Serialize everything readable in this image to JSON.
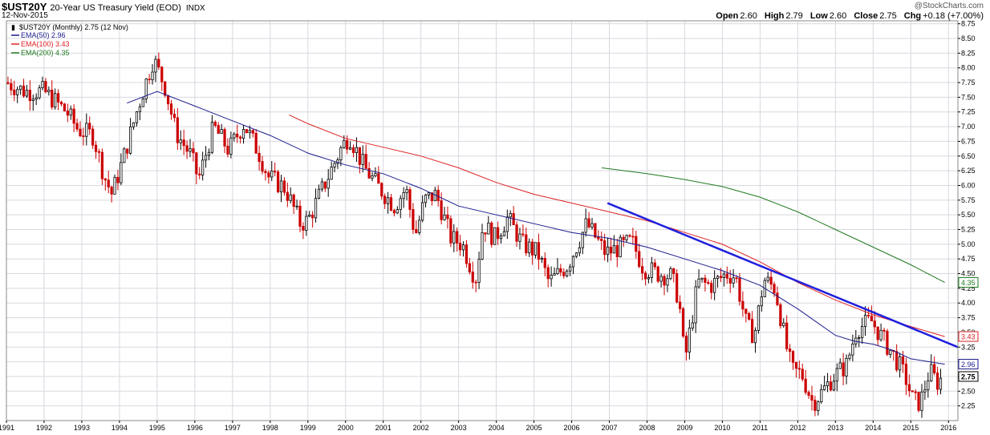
{
  "header": {
    "symbol": "$UST20Y",
    "name": "20-Year US Treasury Yield (EOD)",
    "exchange": "INDX",
    "date": "12-Nov-2015",
    "watermark": "@StockCharts.com",
    "open_label": "Open",
    "open": "2.60",
    "high_label": "High",
    "high": "2.79",
    "low_label": "Low",
    "low": "2.60",
    "close_label": "Close",
    "close": "2.75",
    "chg_label": "Chg",
    "chg": "+0.18 (+7.00%)"
  },
  "legend": {
    "main": "$UST20Y (Monthly) 2.75 (12 Nov)",
    "ema50": "EMA(50) 2.96",
    "ema100": "EMA(100) 3.43",
    "ema200": "EMA(200) 4.35"
  },
  "colors": {
    "up": "#000000",
    "down": "#cc0000",
    "ema50": "#1a1a8c",
    "ema100": "#dd2222",
    "ema200": "#1f7a1f",
    "trendline": "#1f1fdd",
    "grid": "#d8d8e0",
    "plot_border": "#888888"
  },
  "chart_data": {
    "type": "candlestick",
    "title": "$UST20Y 20-Year US Treasury Yield (EOD)",
    "frequency": "Monthly",
    "x_range": [
      1991.0,
      2016.25
    ],
    "y_range": [
      2.0,
      8.8
    ],
    "y_ticks": [
      "2.25",
      "2.50",
      "2.75",
      "3.00",
      "3.25",
      "3.50",
      "3.75",
      "4.00",
      "4.25",
      "4.50",
      "4.75",
      "5.00",
      "5.25",
      "5.50",
      "5.75",
      "6.00",
      "6.25",
      "6.50",
      "6.75",
      "7.00",
      "7.25",
      "7.50",
      "7.75",
      "8.00",
      "8.25",
      "8.50",
      "8.75"
    ],
    "x_ticks": [
      "1991",
      "1992",
      "1993",
      "1994",
      "1995",
      "1996",
      "1997",
      "1998",
      "1999",
      "2000",
      "2001",
      "2002",
      "2003",
      "2004",
      "2005",
      "2006",
      "2007",
      "2008",
      "2009",
      "2010",
      "2011",
      "2012",
      "2013",
      "2014",
      "2015",
      "2016"
    ],
    "price_path": [
      [
        1991.0,
        7.75
      ],
      [
        1991.5,
        7.6
      ],
      [
        1992.0,
        7.6
      ],
      [
        1992.6,
        7.25
      ],
      [
        1992.9,
        6.95
      ],
      [
        1993.3,
        6.85
      ],
      [
        1993.6,
        6.15
      ],
      [
        1993.8,
        5.85
      ],
      [
        1994.1,
        6.45
      ],
      [
        1994.5,
        7.35
      ],
      [
        1994.9,
        8.15
      ],
      [
        1995.2,
        7.7
      ],
      [
        1995.5,
        6.9
      ],
      [
        1995.9,
        6.5
      ],
      [
        1996.1,
        6.1
      ],
      [
        1996.5,
        7.0
      ],
      [
        1996.9,
        6.6
      ],
      [
        1997.3,
        7.05
      ],
      [
        1997.7,
        6.55
      ],
      [
        1997.95,
        6.15
      ],
      [
        1998.4,
        5.95
      ],
      [
        1998.8,
        5.35
      ],
      [
        1999.0,
        5.4
      ],
      [
        1999.5,
        6.1
      ],
      [
        1999.9,
        6.65
      ],
      [
        2000.1,
        6.85
      ],
      [
        2000.5,
        6.3
      ],
      [
        2000.9,
        5.95
      ],
      [
        2001.3,
        5.65
      ],
      [
        2001.6,
        5.95
      ],
      [
        2001.85,
        5.15
      ],
      [
        2002.1,
        5.75
      ],
      [
        2002.4,
        5.85
      ],
      [
        2002.8,
        5.1
      ],
      [
        2003.1,
        5.0
      ],
      [
        2003.45,
        4.4
      ],
      [
        2003.65,
        5.35
      ],
      [
        2003.95,
        5.1
      ],
      [
        2004.3,
        5.45
      ],
      [
        2004.7,
        5.0
      ],
      [
        2005.1,
        4.85
      ],
      [
        2005.4,
        4.35
      ],
      [
        2005.9,
        4.65
      ],
      [
        2006.4,
        5.35
      ],
      [
        2006.9,
        4.85
      ],
      [
        2007.3,
        4.95
      ],
      [
        2007.6,
        5.05
      ],
      [
        2007.9,
        4.6
      ],
      [
        2008.3,
        4.5
      ],
      [
        2008.65,
        4.45
      ],
      [
        2008.85,
        4.05
      ],
      [
        2009.0,
        3.0
      ],
      [
        2009.35,
        4.35
      ],
      [
        2009.7,
        4.3
      ],
      [
        2010.1,
        4.5
      ],
      [
        2010.35,
        4.45
      ],
      [
        2010.65,
        3.6
      ],
      [
        2010.85,
        3.45
      ],
      [
        2011.1,
        4.4
      ],
      [
        2011.4,
        4.25
      ],
      [
        2011.7,
        3.25
      ],
      [
        2011.85,
        2.85
      ],
      [
        2012.1,
        2.8
      ],
      [
        2012.4,
        2.3
      ],
      [
        2012.6,
        2.45
      ],
      [
        2012.95,
        2.75
      ],
      [
        2013.3,
        2.95
      ],
      [
        2013.55,
        3.55
      ],
      [
        2013.95,
        3.7
      ],
      [
        2014.3,
        3.35
      ],
      [
        2014.6,
        3.05
      ],
      [
        2014.85,
        2.75
      ],
      [
        2015.05,
        2.35
      ],
      [
        2015.25,
        2.3
      ],
      [
        2015.5,
        2.85
      ],
      [
        2015.7,
        2.65
      ],
      [
        2015.87,
        2.75
      ]
    ],
    "series": [
      {
        "name": "EMA(50)",
        "value": 2.96,
        "points": [
          [
            1994.2,
            7.4
          ],
          [
            1995.0,
            7.6
          ],
          [
            1996.0,
            7.35
          ],
          [
            1997.0,
            7.1
          ],
          [
            1998.0,
            6.85
          ],
          [
            1999.0,
            6.55
          ],
          [
            2000.0,
            6.35
          ],
          [
            2001.0,
            6.2
          ],
          [
            2002.0,
            5.95
          ],
          [
            2003.0,
            5.65
          ],
          [
            2004.0,
            5.5
          ],
          [
            2005.0,
            5.35
          ],
          [
            2006.0,
            5.2
          ],
          [
            2007.0,
            5.1
          ],
          [
            2008.0,
            4.95
          ],
          [
            2009.0,
            4.75
          ],
          [
            2010.0,
            4.55
          ],
          [
            2011.0,
            4.3
          ],
          [
            2011.5,
            4.1
          ],
          [
            2012.0,
            3.9
          ],
          [
            2013.0,
            3.45
          ],
          [
            2013.5,
            3.35
          ],
          [
            2014.0,
            3.3
          ],
          [
            2014.5,
            3.2
          ],
          [
            2015.0,
            3.05
          ],
          [
            2015.9,
            2.96
          ]
        ]
      },
      {
        "name": "EMA(100)",
        "value": 3.43,
        "points": [
          [
            1998.5,
            7.2
          ],
          [
            1999.0,
            7.05
          ],
          [
            2000.0,
            6.8
          ],
          [
            2001.0,
            6.65
          ],
          [
            2002.0,
            6.5
          ],
          [
            2003.0,
            6.3
          ],
          [
            2004.0,
            6.05
          ],
          [
            2005.0,
            5.85
          ],
          [
            2006.0,
            5.7
          ],
          [
            2007.0,
            5.55
          ],
          [
            2008.0,
            5.4
          ],
          [
            2009.0,
            5.2
          ],
          [
            2010.0,
            5.0
          ],
          [
            2011.0,
            4.7
          ],
          [
            2012.0,
            4.35
          ],
          [
            2013.0,
            4.05
          ],
          [
            2014.0,
            3.8
          ],
          [
            2015.0,
            3.6
          ],
          [
            2015.9,
            3.43
          ]
        ]
      },
      {
        "name": "EMA(200)",
        "value": 4.35,
        "points": [
          [
            2006.8,
            6.3
          ],
          [
            2008.0,
            6.2
          ],
          [
            2009.0,
            6.1
          ],
          [
            2010.0,
            5.98
          ],
          [
            2011.0,
            5.8
          ],
          [
            2012.0,
            5.55
          ],
          [
            2013.0,
            5.25
          ],
          [
            2014.0,
            4.95
          ],
          [
            2015.0,
            4.65
          ],
          [
            2015.9,
            4.35
          ]
        ]
      },
      {
        "name": "Trendline",
        "points": [
          [
            2006.95,
            5.7
          ],
          [
            2016.25,
            3.25
          ]
        ]
      }
    ],
    "right_badges": [
      {
        "value": 4.35,
        "label": "4.35",
        "color_key": "ema200"
      },
      {
        "value": 3.43,
        "label": "3.43",
        "color_key": "ema100"
      },
      {
        "value": 2.96,
        "label": "2.96",
        "color_key": "ema50"
      },
      {
        "value": 2.75,
        "label": "2.75",
        "color_key": "up"
      }
    ],
    "grid": true,
    "legend_position": "top-left"
  }
}
